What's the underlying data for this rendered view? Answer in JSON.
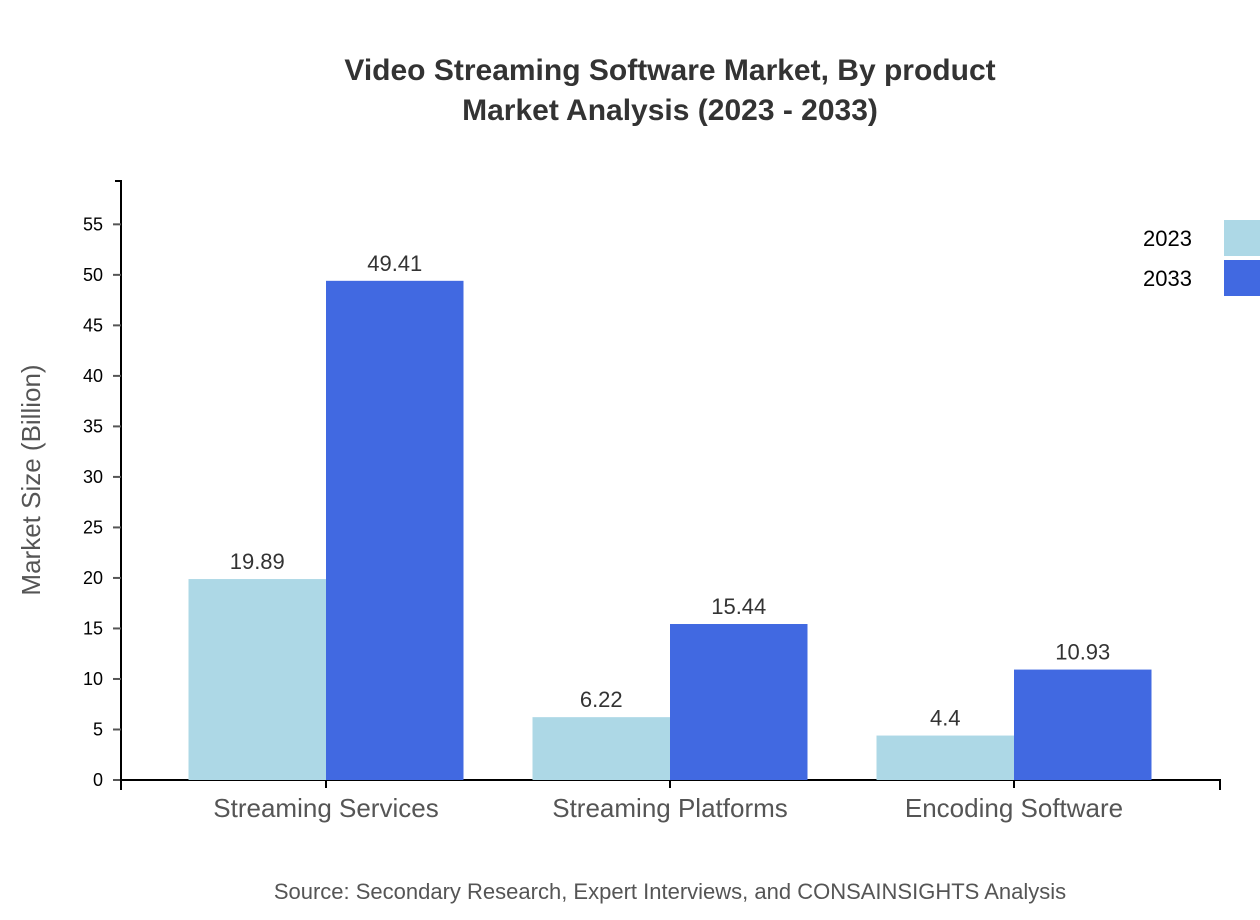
{
  "chart_data": {
    "type": "bar",
    "title": "Video Streaming Software Market, By product",
    "subtitle": "Market Analysis (2023 - 2033)",
    "xlabel": "",
    "ylabel": "Market Size (Billion)",
    "categories": [
      "Streaming Services",
      "Streaming Platforms",
      "Encoding Software"
    ],
    "series": [
      {
        "name": "2023",
        "values": [
          19.89,
          6.22,
          4.4
        ],
        "color": "#ADD8E6"
      },
      {
        "name": "2033",
        "values": [
          49.41,
          15.44,
          10.93
        ],
        "color": "#4169E1"
      }
    ],
    "ylim": [
      0,
      59.29
    ],
    "yticks": [
      0,
      5,
      10,
      15,
      20,
      25,
      30,
      35,
      40,
      45,
      50,
      55
    ],
    "grid": false,
    "legend_position": "top-right",
    "source": "Source: Secondary Research, Expert Interviews, and CONSAINSIGHTS Analysis"
  }
}
